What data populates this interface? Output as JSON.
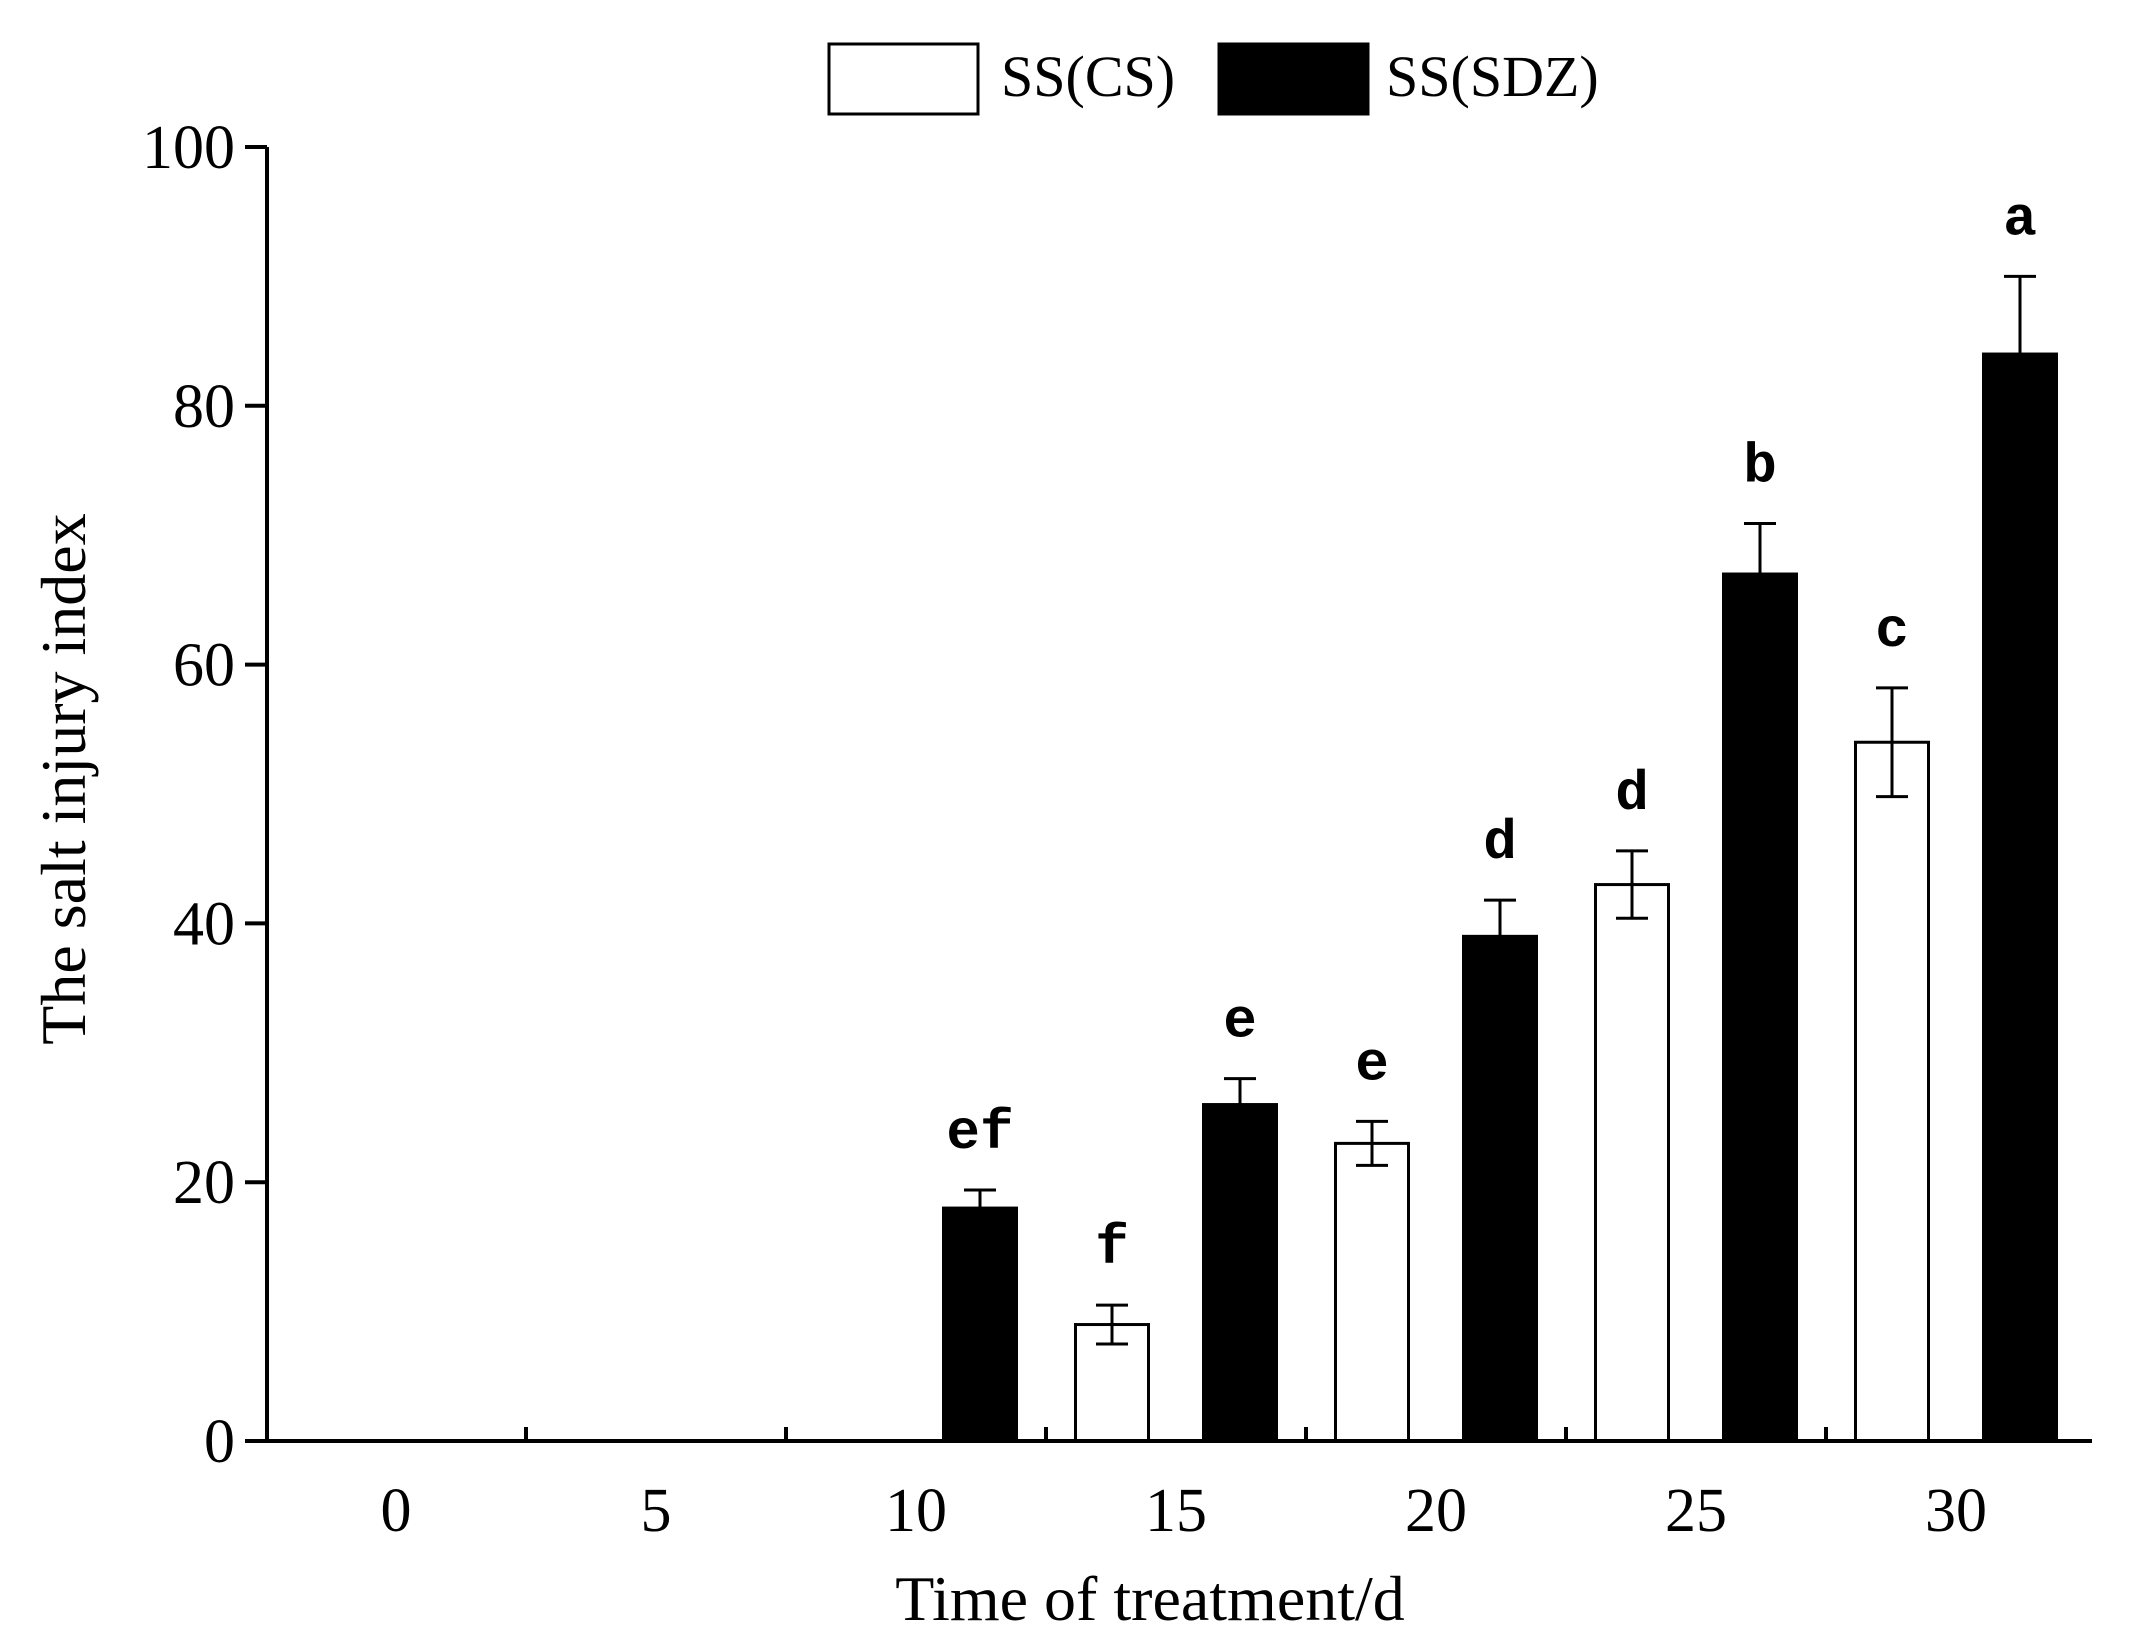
{
  "chart_data": {
    "type": "bar",
    "title": "",
    "xlabel": "Time of treatment/d",
    "ylabel": "The salt injury index",
    "categories": [
      "0",
      "5",
      "10",
      "15",
      "20",
      "25",
      "30"
    ],
    "ylim": [
      0,
      100
    ],
    "yticks": [
      "0",
      "20",
      "40",
      "60",
      "80",
      "100"
    ],
    "grid": false,
    "legend_position": "top-center",
    "series": [
      {
        "name": "SS(CS)",
        "fill": "#ffffff",
        "stroke": "#000000",
        "values": [
          0,
          0,
          0,
          9,
          23,
          43,
          54
        ],
        "errors": [
          0,
          0,
          0,
          1.5,
          1.7,
          2.6,
          4.2
        ],
        "letters": [
          "",
          "",
          "",
          "f",
          "e",
          "d",
          "c"
        ]
      },
      {
        "name": "SS(SDZ)",
        "fill": "#000000",
        "stroke": "#000000",
        "values": [
          0,
          0,
          18,
          26,
          39,
          67,
          84
        ],
        "errors": [
          0,
          0,
          1.4,
          2,
          2.8,
          3.9,
          6
        ],
        "letters": [
          "",
          "",
          "ef",
          "e",
          "d",
          "b",
          "a"
        ]
      }
    ]
  }
}
